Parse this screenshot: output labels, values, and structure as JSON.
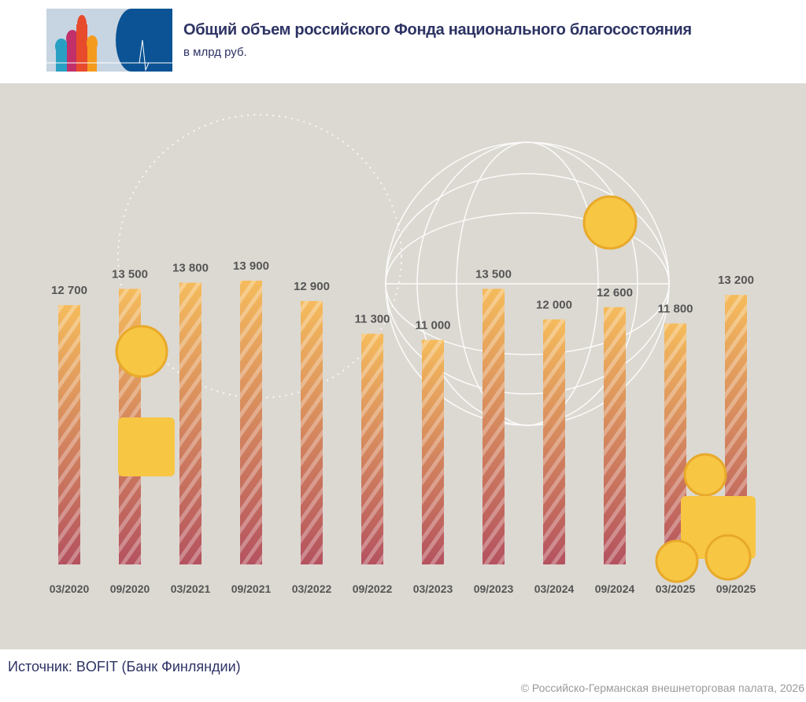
{
  "header": {
    "title": "Общий объем российского Фонда национального благосостояния",
    "subtitle": "в млрд руб."
  },
  "footer": {
    "source": "Источник: BOFIT (Банк Финляндии)",
    "copyright": "© Российско-Германская внешнеторговая палата, 2026"
  },
  "colors": {
    "bar_top": "#f5bb5c",
    "bar_bottom": "#b4525f",
    "background": "#dcd9d2",
    "title": "#2d3364",
    "coin": "#f7c643"
  },
  "chart_data": {
    "type": "bar",
    "title": "Общий объем российского Фонда национального благосостояния",
    "subtitle": "в млрд руб.",
    "categories": [
      "03/2020",
      "09/2020",
      "03/2021",
      "09/2021",
      "03/2022",
      "09/2022",
      "03/2023",
      "09/2023",
      "03/2024",
      "09/2024",
      "03/2025",
      "09/2025"
    ],
    "values": [
      12700,
      13500,
      13800,
      13900,
      12900,
      11300,
      11000,
      13500,
      12000,
      12600,
      11800,
      13200
    ],
    "labels": [
      "12 700",
      "13 500",
      "13 800",
      "13 900",
      "12 900",
      "11 300",
      "11 000",
      "13 500",
      "12 000",
      "12 600",
      "11 800",
      "13 200"
    ],
    "ylim": [
      0,
      14000
    ],
    "grid": false,
    "legend": "none"
  }
}
